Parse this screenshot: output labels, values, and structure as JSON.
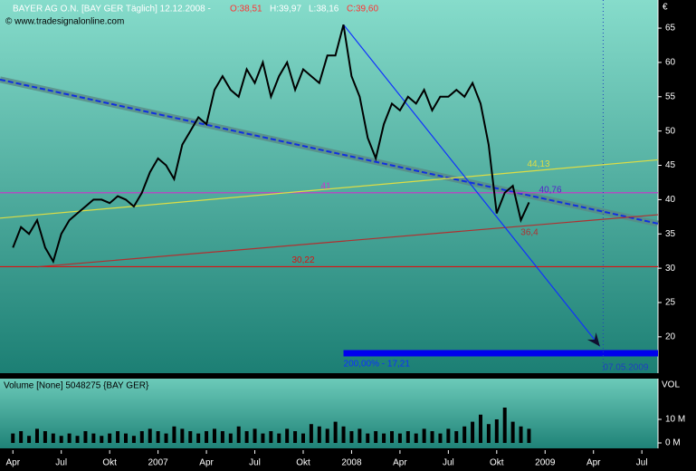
{
  "header": {
    "title": "BAYER AG O.N. [BAY GER  Täglich] 12.12.2008 -",
    "open": "O:38,51",
    "high": "H:39,97",
    "low": "L:38,16",
    "close": "C:39,60",
    "copyright": "© www.tradesignalonline.com"
  },
  "chart_data": [
    {
      "type": "line",
      "y_unit": "€",
      "color": "#000000",
      "x": [
        0,
        0.5,
        1,
        1.5,
        2,
        2.5,
        3,
        3.5,
        4,
        4.5,
        5,
        5.5,
        6,
        6.5,
        7,
        7.5,
        8,
        8.5,
        9,
        9.5,
        10,
        10.5,
        11,
        11.5,
        12,
        12.5,
        13,
        13.5,
        14,
        14.5,
        15,
        15.5,
        16,
        16.5,
        17,
        17.5,
        18,
        18.5,
        19,
        19.5,
        20,
        20.5,
        21,
        21.5,
        22,
        22.5,
        23,
        23.5,
        24,
        24.5,
        25,
        25.5,
        26,
        26.5,
        27,
        27.5,
        28,
        28.5,
        29,
        29.5,
        30,
        30.5,
        31,
        31.5,
        32
      ],
      "values": [
        33,
        36,
        35,
        37,
        33,
        31,
        35,
        37,
        38,
        39,
        40,
        40,
        39.5,
        40.5,
        40,
        39,
        41,
        44,
        46,
        45,
        43,
        48,
        50,
        52,
        51,
        56,
        58,
        56,
        55,
        59,
        57,
        60,
        55,
        58,
        60,
        56,
        59,
        58,
        57,
        61,
        61,
        65.5,
        58,
        55,
        49,
        46,
        51,
        54,
        53,
        55,
        54,
        56,
        53,
        55,
        55,
        56,
        55,
        57,
        54,
        48,
        38,
        41,
        42,
        37,
        39.6
      ],
      "xlim": [
        -0.8,
        40
      ],
      "xticks": [
        {
          "value": 0,
          "label": "Apr"
        },
        {
          "value": 3,
          "label": "Jul"
        },
        {
          "value": 6,
          "label": "Okt"
        },
        {
          "value": 9,
          "label": "2007"
        },
        {
          "value": 12,
          "label": "Apr"
        },
        {
          "value": 15,
          "label": "Jul"
        },
        {
          "value": 18,
          "label": "Okt"
        },
        {
          "value": 21,
          "label": "2008"
        },
        {
          "value": 24,
          "label": "Apr"
        },
        {
          "value": 27,
          "label": "Jul"
        },
        {
          "value": 30,
          "label": "Okt"
        },
        {
          "value": 33,
          "label": "2009"
        },
        {
          "value": 36,
          "label": "Apr"
        },
        {
          "value": 39,
          "label": "Jul"
        }
      ],
      "ylim": [
        14.7,
        69.1
      ],
      "yticks": [
        20,
        25,
        30,
        35,
        40,
        45,
        50,
        55,
        60,
        65
      ],
      "lines": [
        {
          "x": [
            -0.8,
            40
          ],
          "values": [
            57.5,
            36.5
          ],
          "color": "#5a8a84",
          "style": "band"
        },
        {
          "x": [
            -0.8,
            40
          ],
          "values": [
            57.5,
            36.5
          ],
          "color": "#1030e0",
          "style": "dash"
        },
        {
          "x": [
            -0.8,
            40
          ],
          "values": [
            41,
            41
          ],
          "color": "#cc33cc",
          "label": "41"
        },
        {
          "x": [
            -0.8,
            40
          ],
          "values": [
            30.22,
            30.22
          ],
          "color": "#dd1111",
          "label": "30,22"
        },
        {
          "x": [
            -0.8,
            40
          ],
          "values": [
            37.3,
            45.8
          ],
          "color": "#dddd44",
          "label": "44,13"
        },
        {
          "x": [
            1.5,
            40
          ],
          "values": [
            30.2,
            37.8
          ],
          "color": "#b03030",
          "label": "36,4"
        },
        {
          "x": [
            20.5,
            36.4
          ],
          "values": [
            65.5,
            18.6
          ],
          "color": "#1030ff",
          "style": "arrow"
        },
        {
          "x": [
            20.5,
            40
          ],
          "values": [
            17.6,
            17.6
          ],
          "color": "#0000ee",
          "style": "target",
          "label": "200,00% - 17,21"
        }
      ],
      "markers": [
        {
          "x": 31.5,
          "label": "40,76",
          "color": "#5522cc"
        }
      ],
      "vlines": [
        {
          "x": 36.6,
          "label": "07.05.2009",
          "color": "#2040c0"
        }
      ]
    },
    {
      "type": "bar",
      "title": "Volume [None] 5048275 {BAY GER}",
      "y_unit": "VOL",
      "color": "#000000",
      "x": [
        0,
        0.5,
        1,
        1.5,
        2,
        2.5,
        3,
        3.5,
        4,
        4.5,
        5,
        5.5,
        6,
        6.5,
        7,
        7.5,
        8,
        8.5,
        9,
        9.5,
        10,
        10.5,
        11,
        11.5,
        12,
        12.5,
        13,
        13.5,
        14,
        14.5,
        15,
        15.5,
        16,
        16.5,
        17,
        17.5,
        18,
        18.5,
        19,
        19.5,
        20,
        20.5,
        21,
        21.5,
        22,
        22.5,
        23,
        23.5,
        24,
        24.5,
        25,
        25.5,
        26,
        26.5,
        27,
        27.5,
        28,
        28.5,
        29,
        29.5,
        30,
        30.5,
        31,
        31.5,
        32
      ],
      "values": [
        4,
        5,
        3,
        6,
        5,
        4,
        3,
        4,
        3,
        5,
        4,
        3,
        4,
        5,
        4,
        3,
        5,
        6,
        5,
        4,
        7,
        6,
        5,
        4,
        5,
        6,
        5,
        4,
        7,
        5,
        6,
        4,
        5,
        4,
        6,
        5,
        4,
        8,
        7,
        6,
        9,
        7,
        5,
        6,
        4,
        5,
        4,
        5,
        4,
        5,
        4,
        6,
        5,
        4,
        6,
        5,
        7,
        9,
        12,
        8,
        10,
        15,
        9,
        7,
        6
      ],
      "xlim": [
        -0.8,
        40
      ],
      "ylim": [
        -2.3,
        27.3
      ],
      "yticks": [
        {
          "value": 0,
          "label": "0 M"
        },
        {
          "value": 10,
          "label": "10 M"
        }
      ]
    }
  ]
}
